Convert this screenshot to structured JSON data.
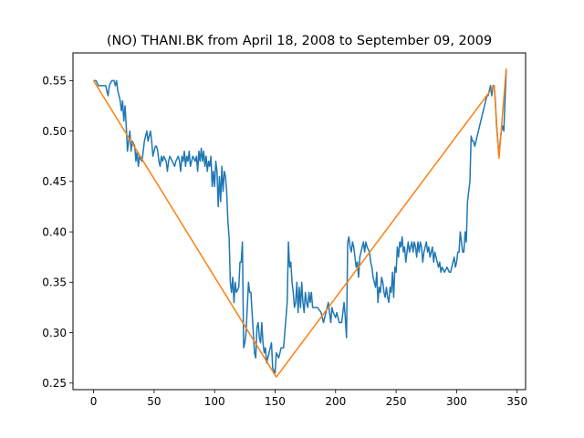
{
  "chart_data": {
    "type": "line",
    "title": "(NO) THANI.BK from April 18, 2008 to September 09, 2009",
    "xlabel": "",
    "ylabel": "",
    "xlim": [
      -17,
      357
    ],
    "ylim": [
      0.2435,
      0.5775
    ],
    "xticks": [
      0,
      50,
      100,
      150,
      200,
      250,
      300,
      350
    ],
    "yticks": [
      0.25,
      0.3,
      0.35,
      0.4,
      0.45,
      0.5,
      0.55
    ],
    "ytick_labels": [
      "0.25",
      "0.30",
      "0.35",
      "0.40",
      "0.45",
      "0.50",
      "0.55"
    ],
    "grid": false,
    "series": [
      {
        "color": "#1f77b4",
        "points": [
          [
            0,
            0.55
          ],
          [
            2,
            0.55
          ],
          [
            4,
            0.545
          ],
          [
            6,
            0.545
          ],
          [
            8,
            0.545
          ],
          [
            10,
            0.545
          ],
          [
            12,
            0.535
          ],
          [
            13,
            0.545
          ],
          [
            15,
            0.55
          ],
          [
            17,
            0.55
          ],
          [
            18,
            0.545
          ],
          [
            19,
            0.55
          ],
          [
            20,
            0.54
          ],
          [
            21,
            0.535
          ],
          [
            22,
            0.53
          ],
          [
            23,
            0.52
          ],
          [
            24,
            0.53
          ],
          [
            25,
            0.51
          ],
          [
            26,
            0.525
          ],
          [
            27,
            0.505
          ],
          [
            28,
            0.48
          ],
          [
            29,
            0.49
          ],
          [
            30,
            0.5
          ],
          [
            31,
            0.48
          ],
          [
            32,
            0.49
          ],
          [
            34,
            0.485
          ],
          [
            35,
            0.47
          ],
          [
            36,
            0.48
          ],
          [
            37,
            0.465
          ],
          [
            38,
            0.475
          ],
          [
            40,
            0.47
          ],
          [
            41,
            0.48
          ],
          [
            42,
            0.49
          ],
          [
            43,
            0.495
          ],
          [
            44,
            0.5
          ],
          [
            45,
            0.49
          ],
          [
            46,
            0.495
          ],
          [
            47,
            0.5
          ],
          [
            48,
            0.49
          ],
          [
            49,
            0.475
          ],
          [
            50,
            0.48
          ],
          [
            51,
            0.485
          ],
          [
            52,
            0.485
          ],
          [
            53,
            0.48
          ],
          [
            54,
            0.47
          ],
          [
            55,
            0.465
          ],
          [
            56,
            0.475
          ],
          [
            57,
            0.47
          ],
          [
            58,
            0.475
          ],
          [
            60,
            0.47
          ],
          [
            61,
            0.46
          ],
          [
            62,
            0.47
          ],
          [
            63,
            0.475
          ],
          [
            65,
            0.47
          ],
          [
            67,
            0.465
          ],
          [
            68,
            0.47
          ],
          [
            70,
            0.475
          ],
          [
            71,
            0.47
          ],
          [
            72,
            0.46
          ],
          [
            73,
            0.475
          ],
          [
            74,
            0.47
          ],
          [
            75,
            0.48
          ],
          [
            76,
            0.465
          ],
          [
            77,
            0.475
          ],
          [
            78,
            0.47
          ],
          [
            79,
            0.48
          ],
          [
            80,
            0.465
          ],
          [
            82,
            0.475
          ],
          [
            84,
            0.47
          ],
          [
            85,
            0.475
          ],
          [
            86,
            0.46
          ],
          [
            87,
            0.48
          ],
          [
            88,
            0.47
          ],
          [
            89,
            0.483
          ],
          [
            90,
            0.47
          ],
          [
            91,
            0.48
          ],
          [
            92,
            0.465
          ],
          [
            93,
            0.475
          ],
          [
            94,
            0.46
          ],
          [
            95,
            0.47
          ],
          [
            96,
            0.465
          ],
          [
            97,
            0.475
          ],
          [
            98,
            0.445
          ],
          [
            99,
            0.46
          ],
          [
            100,
            0.445
          ],
          [
            101,
            0.47
          ],
          [
            102,
            0.46
          ],
          [
            103,
            0.425
          ],
          [
            104,
            0.455
          ],
          [
            105,
            0.43
          ],
          [
            106,
            0.465
          ],
          [
            107,
            0.44
          ],
          [
            108,
            0.46
          ],
          [
            109,
            0.455
          ],
          [
            110,
            0.44
          ],
          [
            111,
            0.41
          ],
          [
            112,
            0.395
          ],
          [
            113,
            0.35
          ],
          [
            114,
            0.34
          ],
          [
            115,
            0.355
          ],
          [
            116,
            0.33
          ],
          [
            117,
            0.35
          ],
          [
            118,
            0.34
          ],
          [
            120,
            0.345
          ],
          [
            121,
            0.37
          ],
          [
            122,
            0.37
          ],
          [
            123,
            0.39
          ],
          [
            124,
            0.285
          ],
          [
            125,
            0.29
          ],
          [
            126,
            0.3
          ],
          [
            127,
            0.325
          ],
          [
            128,
            0.35
          ],
          [
            129,
            0.34
          ],
          [
            130,
            0.34
          ],
          [
            131,
            0.32
          ],
          [
            132,
            0.3
          ],
          [
            133,
            0.28
          ],
          [
            134,
            0.275
          ],
          [
            135,
            0.305
          ],
          [
            136,
            0.31
          ],
          [
            137,
            0.295
          ],
          [
            138,
            0.29
          ],
          [
            139,
            0.31
          ],
          [
            140,
            0.29
          ],
          [
            141,
            0.28
          ],
          [
            142,
            0.285
          ],
          [
            143,
            0.27
          ],
          [
            144,
            0.275
          ],
          [
            145,
            0.28
          ],
          [
            146,
            0.285
          ],
          [
            147,
            0.29
          ],
          [
            148,
            0.265
          ],
          [
            150,
            0.26
          ],
          [
            151,
            0.28
          ],
          [
            153,
            0.275
          ],
          [
            155,
            0.285
          ],
          [
            157,
            0.285
          ],
          [
            158,
            0.3
          ],
          [
            160,
            0.33
          ],
          [
            161,
            0.39
          ],
          [
            162,
            0.365
          ],
          [
            163,
            0.37
          ],
          [
            164,
            0.35
          ],
          [
            165,
            0.34
          ],
          [
            166,
            0.325
          ],
          [
            167,
            0.33
          ],
          [
            168,
            0.35
          ],
          [
            169,
            0.32
          ],
          [
            170,
            0.345
          ],
          [
            171,
            0.325
          ],
          [
            172,
            0.35
          ],
          [
            173,
            0.33
          ],
          [
            174,
            0.32
          ],
          [
            175,
            0.34
          ],
          [
            176,
            0.33
          ],
          [
            177,
            0.325
          ],
          [
            178,
            0.34
          ],
          [
            179,
            0.33
          ],
          [
            180,
            0.34
          ],
          [
            181,
            0.325
          ],
          [
            185,
            0.325
          ],
          [
            188,
            0.32
          ],
          [
            190,
            0.31
          ],
          [
            192,
            0.32
          ],
          [
            194,
            0.33
          ],
          [
            196,
            0.31
          ],
          [
            197,
            0.325
          ],
          [
            198,
            0.32
          ],
          [
            200,
            0.315
          ],
          [
            201,
            0.32
          ],
          [
            203,
            0.31
          ],
          [
            205,
            0.31
          ],
          [
            206,
            0.32
          ],
          [
            207,
            0.33
          ],
          [
            208,
            0.315
          ],
          [
            209,
            0.295
          ],
          [
            210,
            0.39
          ],
          [
            211,
            0.395
          ],
          [
            212,
            0.385
          ],
          [
            213,
            0.38
          ],
          [
            214,
            0.39
          ],
          [
            215,
            0.385
          ],
          [
            216,
            0.375
          ],
          [
            217,
            0.365
          ],
          [
            218,
            0.37
          ],
          [
            219,
            0.355
          ],
          [
            220,
            0.375
          ],
          [
            221,
            0.38
          ],
          [
            222,
            0.385
          ],
          [
            223,
            0.39
          ],
          [
            224,
            0.38
          ],
          [
            225,
            0.39
          ],
          [
            226,
            0.385
          ],
          [
            228,
            0.38
          ],
          [
            229,
            0.37
          ],
          [
            230,
            0.365
          ],
          [
            231,
            0.355
          ],
          [
            232,
            0.35
          ],
          [
            233,
            0.345
          ],
          [
            234,
            0.36
          ],
          [
            235,
            0.33
          ],
          [
            236,
            0.345
          ],
          [
            237,
            0.34
          ],
          [
            238,
            0.355
          ],
          [
            239,
            0.35
          ],
          [
            240,
            0.34
          ],
          [
            241,
            0.335
          ],
          [
            242,
            0.345
          ],
          [
            243,
            0.335
          ],
          [
            244,
            0.33
          ],
          [
            245,
            0.345
          ],
          [
            246,
            0.34
          ],
          [
            247,
            0.36
          ],
          [
            248,
            0.335
          ],
          [
            249,
            0.365
          ],
          [
            250,
            0.36
          ],
          [
            251,
            0.385
          ],
          [
            252,
            0.375
          ],
          [
            253,
            0.39
          ],
          [
            254,
            0.385
          ],
          [
            255,
            0.395
          ],
          [
            256,
            0.38
          ],
          [
            257,
            0.385
          ],
          [
            258,
            0.37
          ],
          [
            259,
            0.38
          ],
          [
            260,
            0.39
          ],
          [
            261,
            0.38
          ],
          [
            262,
            0.385
          ],
          [
            263,
            0.39
          ],
          [
            264,
            0.38
          ],
          [
            265,
            0.39
          ],
          [
            266,
            0.385
          ],
          [
            267,
            0.375
          ],
          [
            268,
            0.39
          ],
          [
            269,
            0.38
          ],
          [
            270,
            0.39
          ],
          [
            271,
            0.385
          ],
          [
            272,
            0.37
          ],
          [
            273,
            0.38
          ],
          [
            274,
            0.385
          ],
          [
            275,
            0.39
          ],
          [
            276,
            0.38
          ],
          [
            277,
            0.385
          ],
          [
            278,
            0.375
          ],
          [
            279,
            0.38
          ],
          [
            280,
            0.385
          ],
          [
            281,
            0.37
          ],
          [
            282,
            0.38
          ],
          [
            283,
            0.375
          ],
          [
            284,
            0.37
          ],
          [
            285,
            0.365
          ],
          [
            286,
            0.37
          ],
          [
            287,
            0.36
          ],
          [
            288,
            0.365
          ],
          [
            290,
            0.36
          ],
          [
            292,
            0.365
          ],
          [
            294,
            0.36
          ],
          [
            295,
            0.36
          ],
          [
            296,
            0.365
          ],
          [
            297,
            0.37
          ],
          [
            298,
            0.375
          ],
          [
            299,
            0.365
          ],
          [
            300,
            0.37
          ],
          [
            301,
            0.38
          ],
          [
            302,
            0.38
          ],
          [
            303,
            0.4
          ],
          [
            304,
            0.39
          ],
          [
            305,
            0.38
          ],
          [
            306,
            0.38
          ],
          [
            307,
            0.4
          ],
          [
            308,
            0.39
          ],
          [
            309,
            0.43
          ],
          [
            310,
            0.44
          ],
          [
            311,
            0.45
          ],
          [
            312,
            0.495
          ],
          [
            313,
            0.49
          ],
          [
            314,
            0.49
          ],
          [
            315,
            0.485
          ],
          [
            316,
            0.49
          ],
          [
            317,
            0.495
          ],
          [
            318,
            0.5
          ],
          [
            319,
            0.505
          ],
          [
            320,
            0.51
          ],
          [
            321,
            0.515
          ],
          [
            322,
            0.52
          ],
          [
            323,
            0.525
          ],
          [
            324,
            0.53
          ],
          [
            325,
            0.535
          ],
          [
            326,
            0.535
          ],
          [
            327,
            0.54
          ],
          [
            328,
            0.545
          ],
          [
            329,
            0.535
          ],
          [
            330,
            0.545
          ],
          [
            331,
            0.545
          ],
          [
            332,
            0.53
          ],
          [
            333,
            0.505
          ],
          [
            334,
            0.49
          ],
          [
            335,
            0.475
          ],
          [
            336,
            0.49
          ],
          [
            337,
            0.5
          ],
          [
            338,
            0.505
          ],
          [
            339,
            0.5
          ],
          [
            340,
            0.53
          ],
          [
            341,
            0.56
          ]
        ]
      },
      {
        "color": "#ff7f0e",
        "points": [
          [
            0,
            0.55
          ],
          [
            151,
            0.256
          ],
          [
            331,
            0.545
          ],
          [
            335,
            0.473
          ],
          [
            341,
            0.562
          ]
        ]
      }
    ]
  }
}
